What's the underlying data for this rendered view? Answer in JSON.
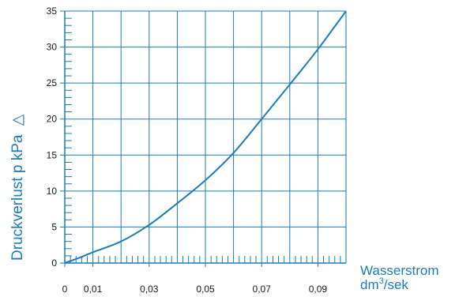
{
  "chart_data": {
    "type": "line",
    "title": "",
    "ylabel": "Druckverlust p kPa",
    "ylabel_symbol": "△",
    "xlabel_line1": "Wasserstrom",
    "xlabel_line2_base": "dm",
    "xlabel_line2_sup": "3",
    "xlabel_line2_rest": "/sek",
    "xlim": [
      0,
      0.1
    ],
    "ylim": [
      0,
      35
    ],
    "x_tick_labels": [
      "0",
      "0,01",
      "0,03",
      "0,05",
      "0,07",
      "0,09"
    ],
    "x_tick_values": [
      0,
      0.01,
      0.03,
      0.05,
      0.07,
      0.09
    ],
    "y_ticks": [
      0,
      5,
      10,
      15,
      20,
      25,
      30,
      35
    ],
    "grid": true,
    "series": [
      {
        "x": [
          0,
          0.005,
          0.01,
          0.02,
          0.03,
          0.04,
          0.05,
          0.06,
          0.07,
          0.08,
          0.09,
          0.1
        ],
        "y": [
          0,
          0.7,
          1.5,
          3.0,
          5.3,
          8.3,
          11.5,
          15.3,
          20.0,
          24.8,
          29.7,
          35.0
        ]
      }
    ]
  },
  "colors": {
    "accent": "#1b7cb8",
    "text": "#1a1a1a",
    "background": "#ffffff"
  }
}
